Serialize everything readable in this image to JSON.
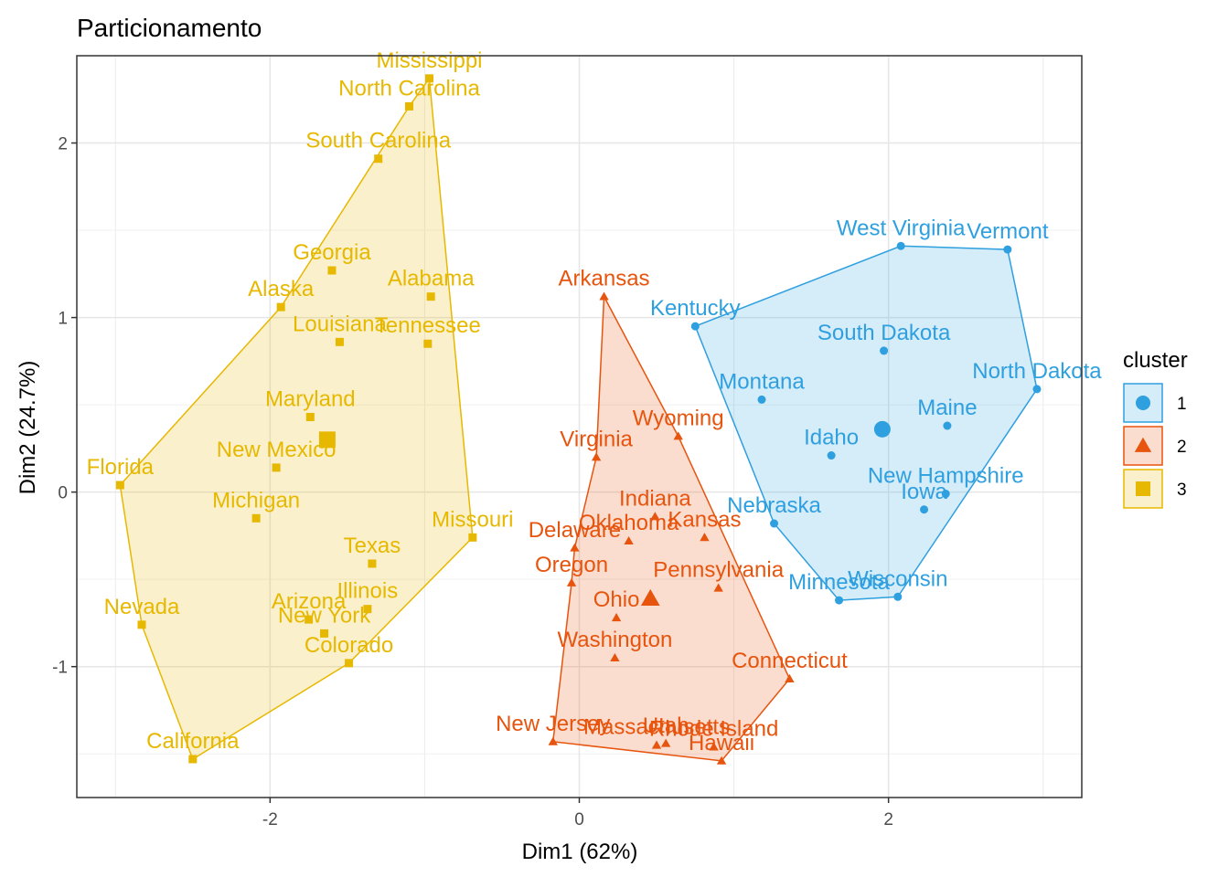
{
  "chart_data": {
    "type": "scatter",
    "title": "Particionamento",
    "xlabel": "Dim1 (62%)",
    "ylabel": "Dim2 (24.7%)",
    "xlim": [
      -3.25,
      3.25
    ],
    "ylim": [
      -1.75,
      2.5
    ],
    "xticks": [
      -2,
      0,
      2
    ],
    "yticks": [
      -1,
      0,
      1,
      2
    ],
    "xtick_labels": [
      "-2",
      "0",
      "2"
    ],
    "ytick_labels": [
      "-1",
      "0",
      "1",
      "2"
    ],
    "grid": true,
    "legend": {
      "title": "cluster",
      "position": "right"
    },
    "series": [
      {
        "name": "1",
        "color": "#2E9FDF",
        "marker": "circle",
        "center": [
          1.96,
          0.36
        ],
        "hull": [
          "West Virginia",
          "Vermont",
          "North Dakota",
          "Wisconsin",
          "Minnesota",
          "Nebraska",
          "Kentucky"
        ],
        "points": [
          {
            "label": "West Virginia",
            "x": 2.08,
            "y": 1.41
          },
          {
            "label": "Vermont",
            "x": 2.77,
            "y": 1.39
          },
          {
            "label": "Kentucky",
            "x": 0.75,
            "y": 0.95
          },
          {
            "label": "South Dakota",
            "x": 1.97,
            "y": 0.81
          },
          {
            "label": "North Dakota",
            "x": 2.96,
            "y": 0.59
          },
          {
            "label": "Montana",
            "x": 1.18,
            "y": 0.53
          },
          {
            "label": "Maine",
            "x": 2.38,
            "y": 0.38
          },
          {
            "label": "Idaho",
            "x": 1.63,
            "y": 0.21
          },
          {
            "label": "New Hampshire",
            "x": 2.37,
            "y": -0.01
          },
          {
            "label": "Iowa",
            "x": 2.23,
            "y": -0.1
          },
          {
            "label": "Nebraska",
            "x": 1.26,
            "y": -0.18
          },
          {
            "label": "Wisconsin",
            "x": 2.06,
            "y": -0.6
          },
          {
            "label": "Minnesota",
            "x": 1.68,
            "y": -0.62
          }
        ]
      },
      {
        "name": "2",
        "color": "#E7540E",
        "marker": "triangle",
        "center": [
          0.46,
          -0.61
        ],
        "hull": [
          "Arkansas",
          "Wyoming",
          "Connecticut",
          "Hawaii",
          "New Jersey",
          "Oregon",
          "Delaware",
          "Virginia"
        ],
        "points": [
          {
            "label": "Arkansas",
            "x": 0.16,
            "y": 1.12
          },
          {
            "label": "Wyoming",
            "x": 0.64,
            "y": 0.32
          },
          {
            "label": "Virginia",
            "x": 0.11,
            "y": 0.2
          },
          {
            "label": "Indiana",
            "x": 0.49,
            "y": -0.14
          },
          {
            "label": "Kansas",
            "x": 0.81,
            "y": -0.26
          },
          {
            "label": "Oklahoma",
            "x": 0.32,
            "y": -0.28
          },
          {
            "label": "Delaware",
            "x": -0.03,
            "y": -0.32
          },
          {
            "label": "Oregon",
            "x": -0.05,
            "y": -0.52
          },
          {
            "label": "Pennsylvania",
            "x": 0.9,
            "y": -0.55
          },
          {
            "label": "Ohio",
            "x": 0.24,
            "y": -0.72
          },
          {
            "label": "Washington",
            "x": 0.23,
            "y": -0.95
          },
          {
            "label": "Connecticut",
            "x": 1.36,
            "y": -1.07
          },
          {
            "label": "New Jersey",
            "x": -0.17,
            "y": -1.43
          },
          {
            "label": "Massachusetts",
            "x": 0.5,
            "y": -1.45
          },
          {
            "label": "Utah",
            "x": 0.56,
            "y": -1.44
          },
          {
            "label": "Rhode Island",
            "x": 0.87,
            "y": -1.46
          },
          {
            "label": "Hawaii",
            "x": 0.92,
            "y": -1.54
          }
        ]
      },
      {
        "name": "3",
        "color": "#E7B800",
        "marker": "square",
        "center": [
          -1.63,
          0.3
        ],
        "hull": [
          "Mississippi",
          "Missouri",
          "Colorado",
          "California",
          "Nevada",
          "Florida",
          "Alaska",
          "North Carolina"
        ],
        "points": [
          {
            "label": "Mississippi",
            "x": -0.97,
            "y": 2.37
          },
          {
            "label": "North Carolina",
            "x": -1.1,
            "y": 2.21
          },
          {
            "label": "South Carolina",
            "x": -1.3,
            "y": 1.91
          },
          {
            "label": "Georgia",
            "x": -1.6,
            "y": 1.27
          },
          {
            "label": "Alabama",
            "x": -0.96,
            "y": 1.12
          },
          {
            "label": "Alaska",
            "x": -1.93,
            "y": 1.06
          },
          {
            "label": "Louisiana",
            "x": -1.55,
            "y": 0.86
          },
          {
            "label": "Tennessee",
            "x": -0.98,
            "y": 0.85
          },
          {
            "label": "Maryland",
            "x": -1.74,
            "y": 0.43
          },
          {
            "label": "New Mexico",
            "x": -1.96,
            "y": 0.14
          },
          {
            "label": "Florida",
            "x": -2.97,
            "y": 0.04
          },
          {
            "label": "Michigan",
            "x": -2.09,
            "y": -0.15
          },
          {
            "label": "Missouri",
            "x": -0.69,
            "y": -0.26
          },
          {
            "label": "Texas",
            "x": -1.34,
            "y": -0.41
          },
          {
            "label": "Illinois",
            "x": -1.37,
            "y": -0.67
          },
          {
            "label": "Arizona",
            "x": -1.75,
            "y": -0.73
          },
          {
            "label": "New York",
            "x": -1.65,
            "y": -0.81
          },
          {
            "label": "Nevada",
            "x": -2.83,
            "y": -0.76
          },
          {
            "label": "Colorado",
            "x": -1.49,
            "y": -0.98
          },
          {
            "label": "California",
            "x": -2.5,
            "y": -1.53
          }
        ]
      }
    ]
  }
}
